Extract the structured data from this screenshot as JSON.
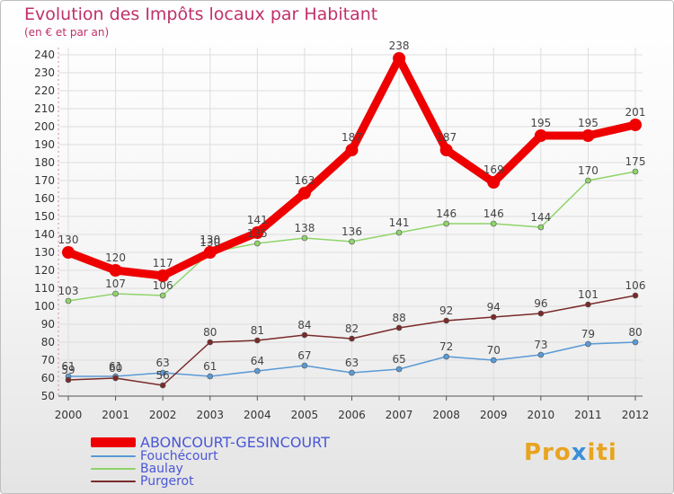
{
  "header": {
    "title": "Evolution des Impôts locaux par Habitant",
    "subtitle": "(en € et par an)"
  },
  "logo": {
    "part1": "Pro",
    "part2": "x",
    "part3": "iti"
  },
  "colors": {
    "title": "#c0306a",
    "grid": "#dddddd",
    "axis": "#555555",
    "legend_text": "#4a57d6"
  },
  "chart_data": {
    "type": "line",
    "title": "Evolution des Impôts locaux par Habitant",
    "subtitle": "(en € et par an)",
    "xlabel": "",
    "ylabel": "",
    "ylim": [
      50,
      240
    ],
    "yticks": [
      50,
      60,
      70,
      80,
      90,
      100,
      110,
      120,
      130,
      140,
      150,
      160,
      170,
      180,
      190,
      200,
      210,
      220,
      230,
      240
    ],
    "grid": true,
    "legend_position": "bottom-left",
    "categories": [
      "2000",
      "2001",
      "2002",
      "2003",
      "2004",
      "2005",
      "2006",
      "2007",
      "2008",
      "2009",
      "2010",
      "2011",
      "2012"
    ],
    "series": [
      {
        "name": "ABONCOURT-GESINCOURT",
        "color": "#ee0000",
        "bold": true,
        "values": [
          130,
          120,
          117,
          130,
          141,
          163,
          187,
          238,
          187,
          169,
          195,
          195,
          201
        ]
      },
      {
        "name": "Fouchécourt",
        "color": "#5a9ad6",
        "bold": false,
        "values": [
          61,
          61,
          63,
          61,
          64,
          67,
          63,
          65,
          72,
          70,
          73,
          79,
          80
        ]
      },
      {
        "name": "Baulay",
        "color": "#8fd46a",
        "bold": false,
        "values": [
          103,
          107,
          106,
          130,
          135,
          138,
          136,
          141,
          146,
          146,
          144,
          170,
          175
        ]
      },
      {
        "name": "Purgerot",
        "color": "#7a2a2a",
        "bold": false,
        "values": [
          59,
          60,
          56,
          80,
          81,
          84,
          82,
          88,
          92,
          94,
          96,
          101,
          106
        ]
      }
    ]
  }
}
